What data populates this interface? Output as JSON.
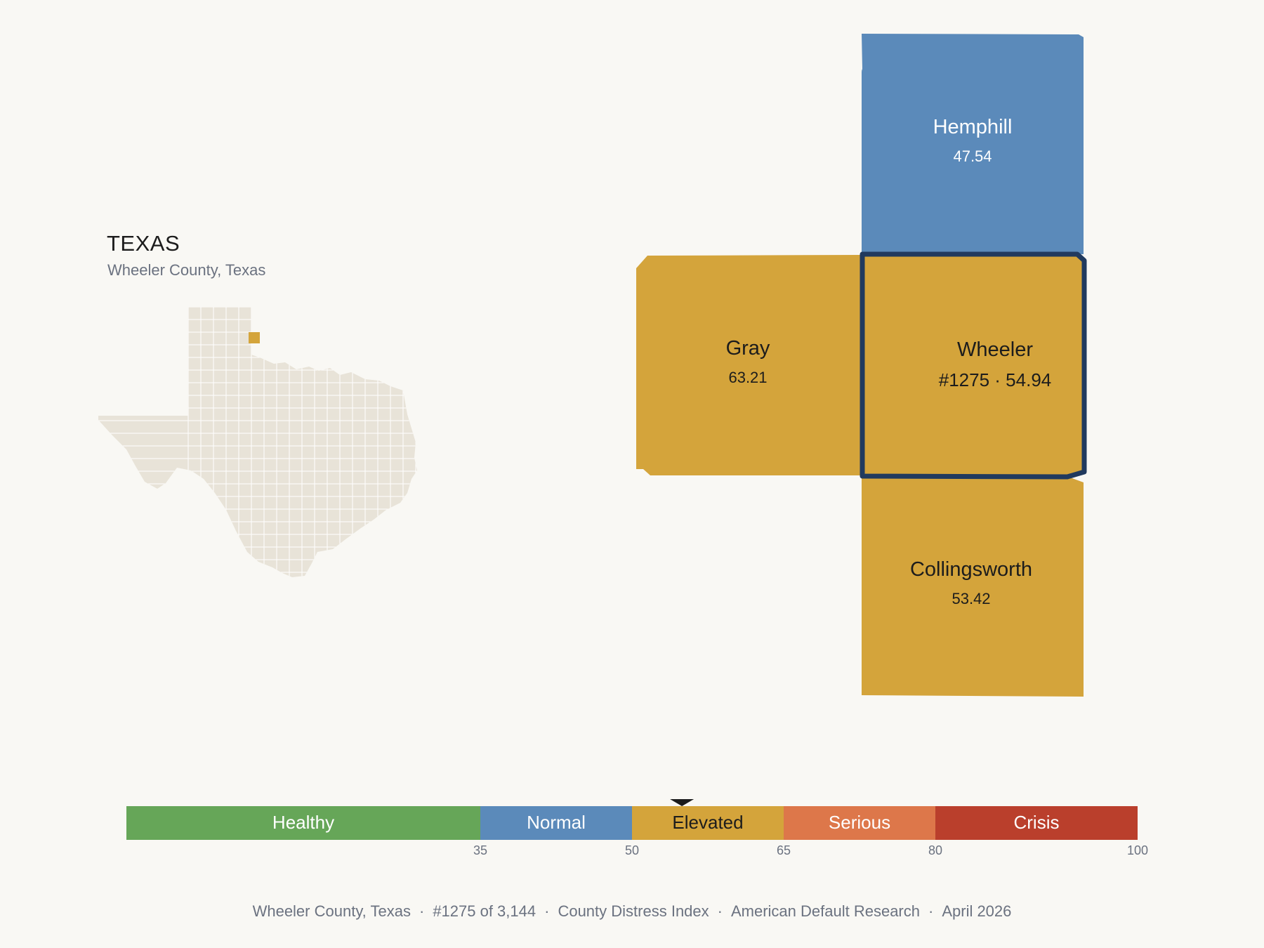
{
  "state": {
    "name": "TEXAS",
    "subtitle": "Wheeler County, Texas"
  },
  "colors": {
    "healthy": "#66a658",
    "normal": "#5b8aba",
    "elevated": "#d4a43b",
    "serious": "#dd774a",
    "crisis": "#ba3f2c",
    "outline": "#213a5e",
    "locator_fill": "#e8e3d8",
    "background": "#f9f8f4"
  },
  "counties": {
    "hemphill": {
      "name": "Hemphill",
      "score": "47.54",
      "band": "normal"
    },
    "gray": {
      "name": "Gray",
      "score": "63.21",
      "band": "elevated"
    },
    "wheeler": {
      "name": "Wheeler",
      "label": "#1275 · 54.94",
      "rank": 1275,
      "score": 54.94,
      "band": "elevated",
      "selected": true
    },
    "collingsworth": {
      "name": "Collingsworth",
      "score": "53.42",
      "band": "elevated"
    }
  },
  "scale": {
    "min": 0,
    "max": 100,
    "marker_value": 54.94,
    "bands": [
      {
        "label": "Healthy",
        "from": 0,
        "to": 35,
        "color": "#66a658"
      },
      {
        "label": "Normal",
        "from": 35,
        "to": 50,
        "color": "#5b8aba"
      },
      {
        "label": "Elevated",
        "from": 50,
        "to": 65,
        "color": "#d4a43b"
      },
      {
        "label": "Serious",
        "from": 65,
        "to": 80,
        "color": "#dd774a"
      },
      {
        "label": "Crisis",
        "from": 80,
        "to": 100,
        "color": "#ba3f2c"
      }
    ],
    "ticks": [
      "35",
      "50",
      "65",
      "80",
      "100"
    ]
  },
  "footer": {
    "county": "Wheeler County, Texas",
    "rank": "#1275 of 3,144",
    "index": "County Distress Index",
    "source": "American Default Research",
    "date": "April 2026"
  }
}
